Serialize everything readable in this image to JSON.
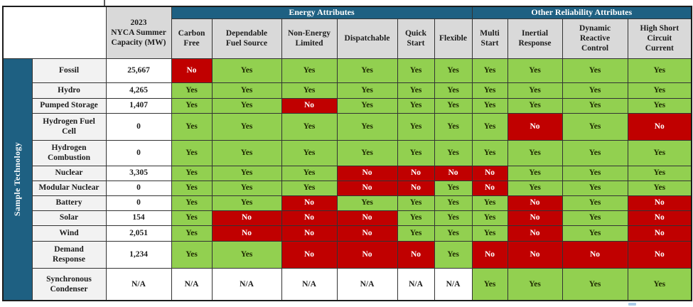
{
  "sidebar_label": "Sample Technology",
  "header": {
    "corner": "",
    "capacity_label": "2023\nNYCA Summer\nCapacity (MW)",
    "groups": [
      {
        "label": "Energy Attributes",
        "span": 6
      },
      {
        "label": "Other Reliability Attributes",
        "span": 4
      }
    ],
    "columns": [
      "Carbon\nFree",
      "Dependable\nFuel Source",
      "Non-Energy\nLimited",
      "Dispatchable",
      "Quick\nStart",
      "Flexible",
      "Multi\nStart",
      "Inertial\nResponse",
      "Dynamic\nReactive\nControl",
      "High Short\nCircuit\nCurrent"
    ]
  },
  "rows": [
    {
      "technology": "Fossil",
      "capacity": "25,667",
      "values": [
        "No",
        "Yes",
        "Yes",
        "Yes",
        "Yes",
        "Yes",
        "Yes",
        "Yes",
        "Yes",
        "Yes"
      ]
    },
    {
      "technology": "Hydro",
      "capacity": "4,265",
      "values": [
        "Yes",
        "Yes",
        "Yes",
        "Yes",
        "Yes",
        "Yes",
        "Yes",
        "Yes",
        "Yes",
        "Yes"
      ]
    },
    {
      "technology": "Pumped Storage",
      "capacity": "1,407",
      "values": [
        "Yes",
        "Yes",
        "No",
        "Yes",
        "Yes",
        "Yes",
        "Yes",
        "Yes",
        "Yes",
        "Yes"
      ]
    },
    {
      "technology": "Hydrogen Fuel\nCell",
      "capacity": "0",
      "values": [
        "Yes",
        "Yes",
        "Yes",
        "Yes",
        "Yes",
        "Yes",
        "Yes",
        "No",
        "Yes",
        "No"
      ]
    },
    {
      "technology": "Hydrogen\nCombustion",
      "capacity": "0",
      "values": [
        "Yes",
        "Yes",
        "Yes",
        "Yes",
        "Yes",
        "Yes",
        "Yes",
        "Yes",
        "Yes",
        "Yes"
      ]
    },
    {
      "technology": "Nuclear",
      "capacity": "3,305",
      "values": [
        "Yes",
        "Yes",
        "Yes",
        "No",
        "No",
        "No",
        "No",
        "Yes",
        "Yes",
        "Yes"
      ]
    },
    {
      "technology": "Modular Nuclear",
      "capacity": "0",
      "values": [
        "Yes",
        "Yes",
        "Yes",
        "No",
        "No",
        "Yes",
        "No",
        "Yes",
        "Yes",
        "Yes"
      ]
    },
    {
      "technology": "Battery",
      "capacity": "0",
      "values": [
        "Yes",
        "Yes",
        "No",
        "Yes",
        "Yes",
        "Yes",
        "Yes",
        "No",
        "Yes",
        "No"
      ]
    },
    {
      "technology": "Solar",
      "capacity": "154",
      "values": [
        "Yes",
        "No",
        "No",
        "No",
        "Yes",
        "Yes",
        "Yes",
        "No",
        "Yes",
        "No"
      ]
    },
    {
      "technology": "Wind",
      "capacity": "2,051",
      "values": [
        "Yes",
        "No",
        "No",
        "No",
        "Yes",
        "Yes",
        "Yes",
        "No",
        "Yes",
        "No"
      ]
    },
    {
      "technology": "Demand\nResponse",
      "capacity": "1,234",
      "values": [
        "Yes",
        "Yes",
        "No",
        "No",
        "No",
        "Yes",
        "No",
        "No",
        "No",
        "No"
      ]
    },
    {
      "technology": "Synchronous\nCondenser",
      "capacity": "N/A",
      "values": [
        "N/A",
        "N/A",
        "N/A",
        "N/A",
        "N/A",
        "N/A",
        "Yes",
        "Yes",
        "Yes",
        "Yes"
      ]
    }
  ],
  "colors": {
    "header_teal": "#1E6082",
    "yes_green": "#92D050",
    "no_red": "#C00000",
    "subheader_gray": "#D9D9D9",
    "label_gray": "#F2F2F2"
  }
}
